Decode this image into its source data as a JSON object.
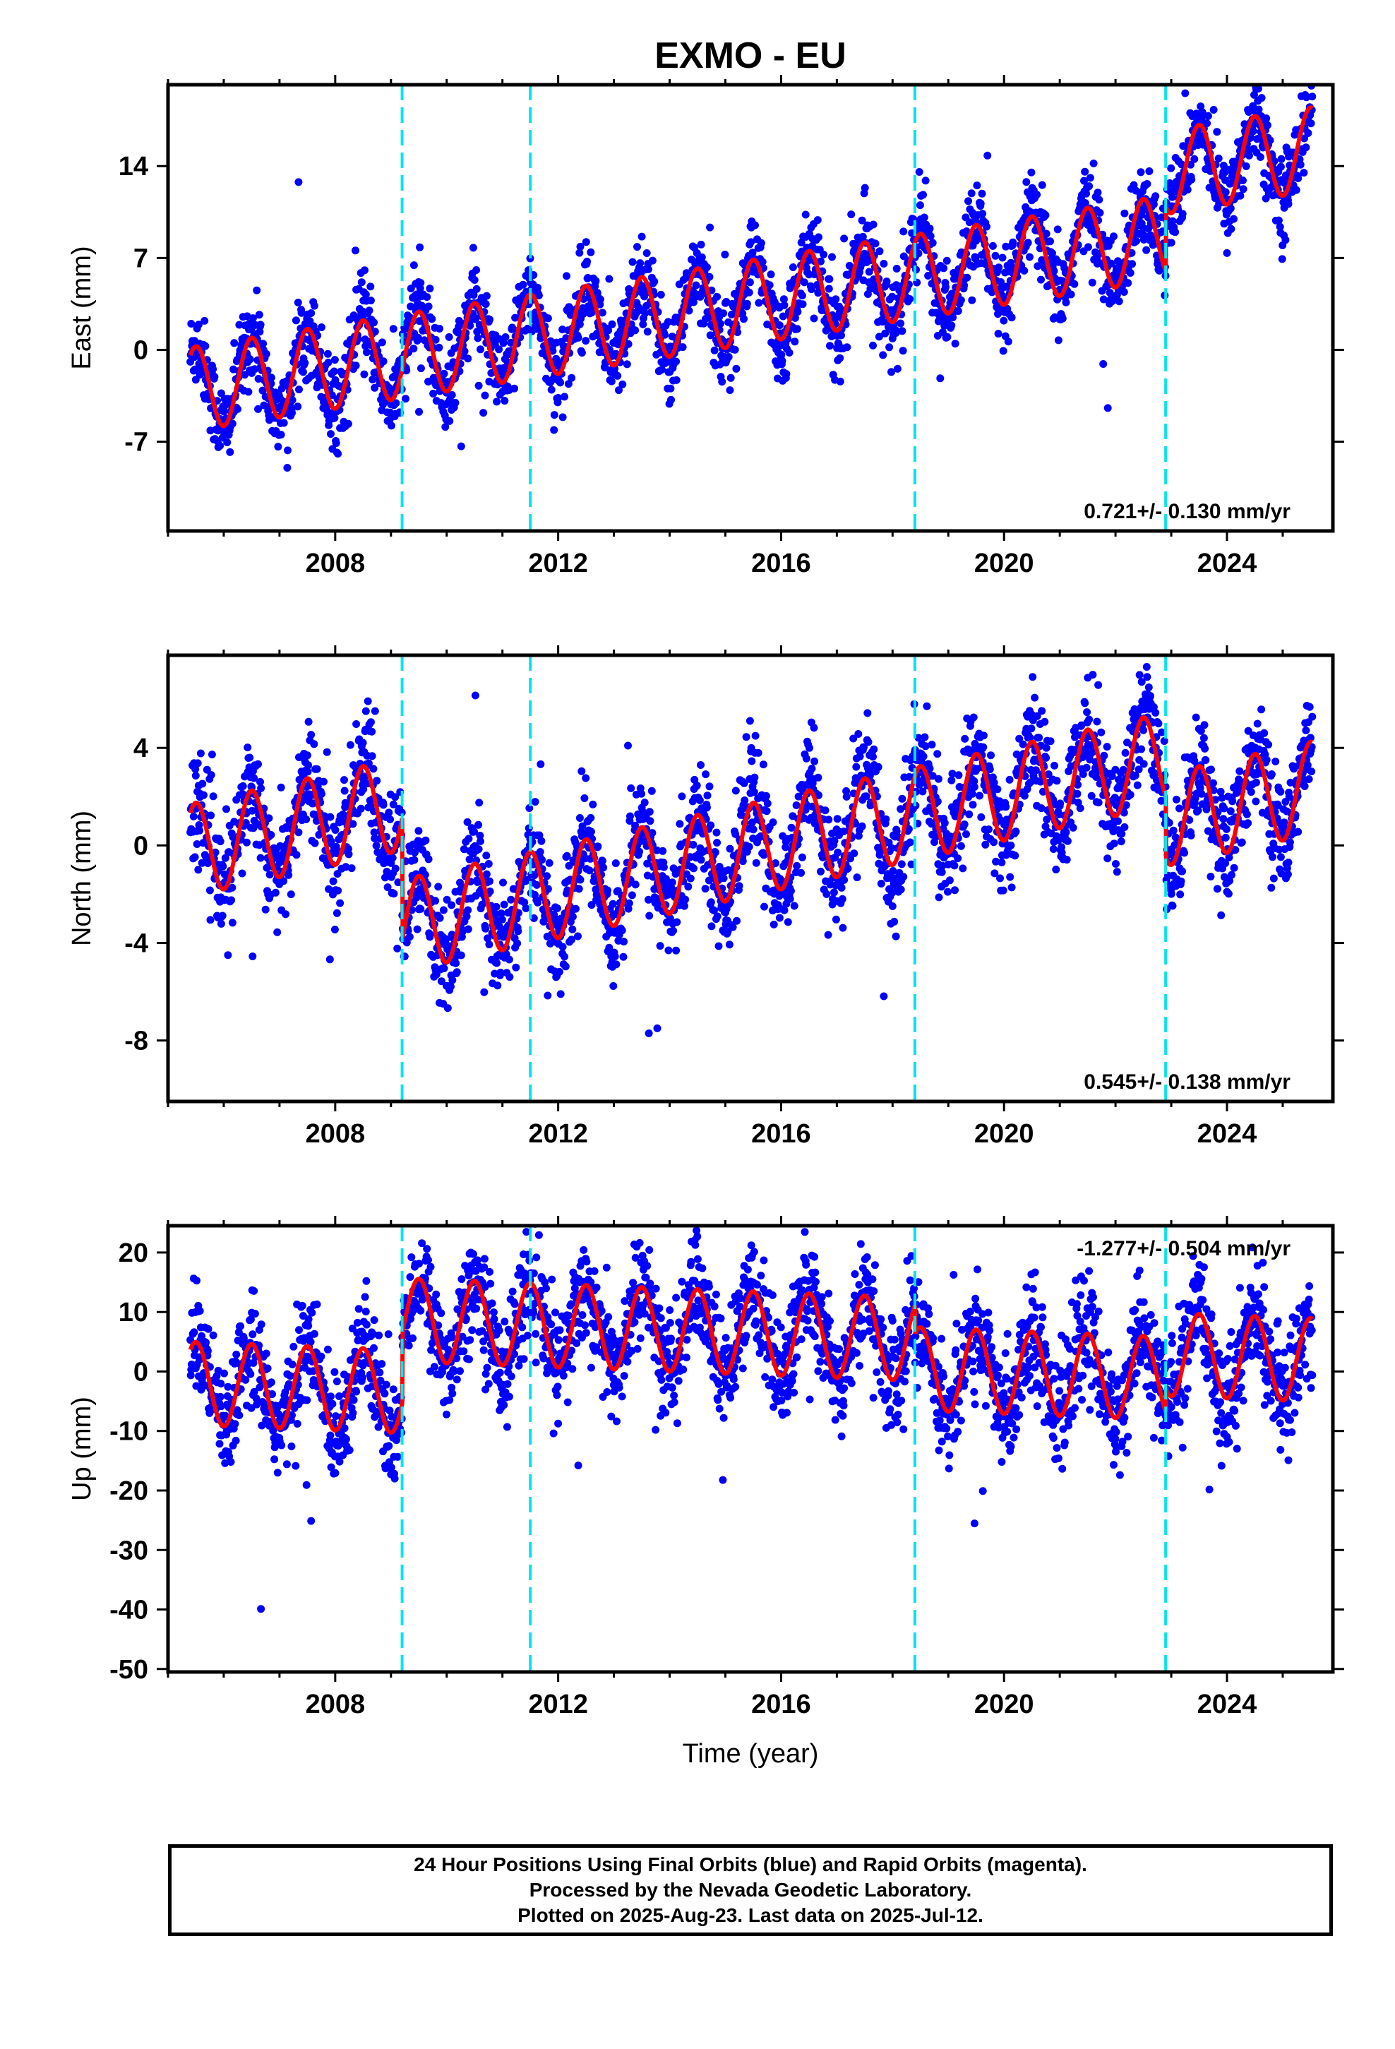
{
  "title": "EXMO - EU",
  "footer": {
    "line1": "24 Hour Positions Using Final Orbits (blue) and Rapid Orbits (magenta).",
    "line2": "Processed by the Nevada Geodetic Laboratory.",
    "line3": "Plotted on 2025-Aug-23. Last data on 2025-Jul-12."
  },
  "colors": {
    "data": "#0000ff",
    "model": "#ff0000",
    "steps": "#00e5ee",
    "frame": "#000000"
  },
  "chart_data": [
    {
      "type": "scatter",
      "component": "east",
      "ylabel": "East (mm)",
      "xlabel": "",
      "xlim": [
        2005.0,
        2025.9
      ],
      "ylim": [
        -13.8,
        20.2
      ],
      "xticks": [
        2008,
        2012,
        2016,
        2020,
        2024
      ],
      "xtick_labels": [
        "2008",
        "2012",
        "2016",
        "2020",
        "2024"
      ],
      "yticks": [
        -7,
        0,
        7,
        14
      ],
      "ytick_labels": [
        "-7",
        "0",
        "7",
        "14"
      ],
      "rate_label": "0.721+/- 0.130 mm/yr",
      "rate_position": "bottom-right",
      "steps": [
        2009.2,
        2011.5,
        2018.4,
        2022.9
      ],
      "model_params": {
        "start": 2005.4,
        "base": -3.0,
        "trend": 0.66,
        "amp": 3.2,
        "jumps": [
          [
            2022.9,
            5.0
          ]
        ]
      },
      "scatter_sd": 1.6
    },
    {
      "type": "scatter",
      "component": "north",
      "ylabel": "North (mm)",
      "xlabel": "",
      "xlim": [
        2005.0,
        2025.9
      ],
      "ylim": [
        -10.5,
        7.8
      ],
      "xticks": [
        2008,
        2012,
        2016,
        2020,
        2024
      ],
      "xtick_labels": [
        "2008",
        "2012",
        "2016",
        "2020",
        "2024"
      ],
      "yticks": [
        -8,
        -4,
        0,
        4
      ],
      "ytick_labels": [
        "-8",
        "-4",
        "0",
        "4"
      ],
      "rate_label": "0.545+/- 0.138 mm/yr",
      "rate_position": "bottom-right",
      "steps": [
        2009.2,
        2011.5,
        2018.4,
        2022.9
      ],
      "model_params": {
        "start": 2005.4,
        "base": -0.2,
        "trend": 0.5,
        "amp": 1.9,
        "jumps": [
          [
            2009.2,
            -5.0
          ],
          [
            2022.9,
            -2.5
          ]
        ]
      },
      "scatter_sd": 1.1
    },
    {
      "type": "scatter",
      "component": "up",
      "ylabel": "Up (mm)",
      "xlabel": "Time (year)",
      "xlim": [
        2005.0,
        2025.9
      ],
      "ylim": [
        -50.5,
        24.5
      ],
      "xticks": [
        2008,
        2012,
        2016,
        2020,
        2024
      ],
      "xtick_labels": [
        "2008",
        "2012",
        "2016",
        "2020",
        "2024"
      ],
      "yticks": [
        -50,
        -40,
        -30,
        -20,
        -10,
        0,
        10,
        20
      ],
      "ytick_labels": [
        "-50",
        "-40",
        "-30",
        "-20",
        "-10",
        "0",
        "10",
        "20"
      ],
      "rate_label": "-1.277+/- 0.504 mm/yr",
      "rate_position": "top-right",
      "steps": [
        2009.2,
        2011.5,
        2018.4,
        2022.9
      ],
      "model_params": {
        "start": 2005.4,
        "base": -2.0,
        "trend": -0.35,
        "amp": 7.0,
        "jumps": [
          [
            2009.2,
            12.0
          ],
          [
            2018.4,
            -5.0
          ],
          [
            2022.9,
            4.0
          ]
        ]
      },
      "scatter_sd": 4.5
    }
  ]
}
